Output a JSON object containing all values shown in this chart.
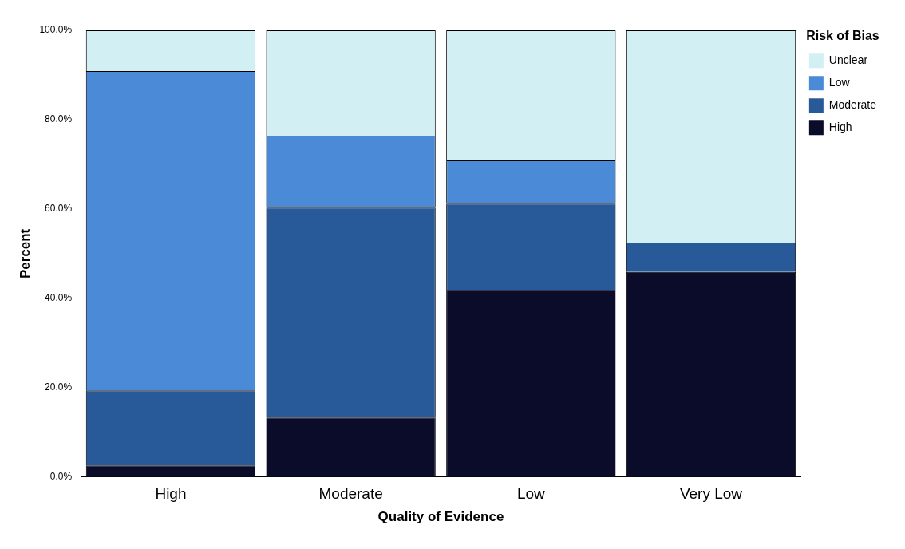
{
  "chart_data": {
    "type": "bar",
    "stacked": true,
    "xlabel": "Quality of Evidence",
    "ylabel": "Percent",
    "legend_title": "Risk of Bias",
    "legend": "top right",
    "grid": false,
    "categories": [
      "High",
      "Moderate",
      "Low",
      "Very Low"
    ],
    "ylim": [
      0,
      100
    ],
    "yticks": [
      {
        "value": 0,
        "label": "0.0%"
      },
      {
        "value": 20,
        "label": "20.0%"
      },
      {
        "value": 40,
        "label": "40.0%"
      },
      {
        "value": 60,
        "label": "60.0%"
      },
      {
        "value": 80,
        "label": "80.0%"
      },
      {
        "value": 100,
        "label": "100.0%"
      }
    ],
    "series": [
      {
        "name": "High",
        "color": "#0a0c2a",
        "values": [
          2.6,
          13.3,
          41.9,
          45.9
        ]
      },
      {
        "name": "Moderate",
        "color": "#285a9a",
        "values": [
          16.8,
          47.0,
          19.3,
          6.6
        ]
      },
      {
        "name": "Low",
        "color": "#4a8ad6",
        "values": [
          71.5,
          16.1,
          9.7,
          0
        ]
      },
      {
        "name": "Unclear",
        "color": "#d2f0f4",
        "values": [
          9.1,
          23.6,
          29.1,
          47.5
        ]
      }
    ]
  }
}
